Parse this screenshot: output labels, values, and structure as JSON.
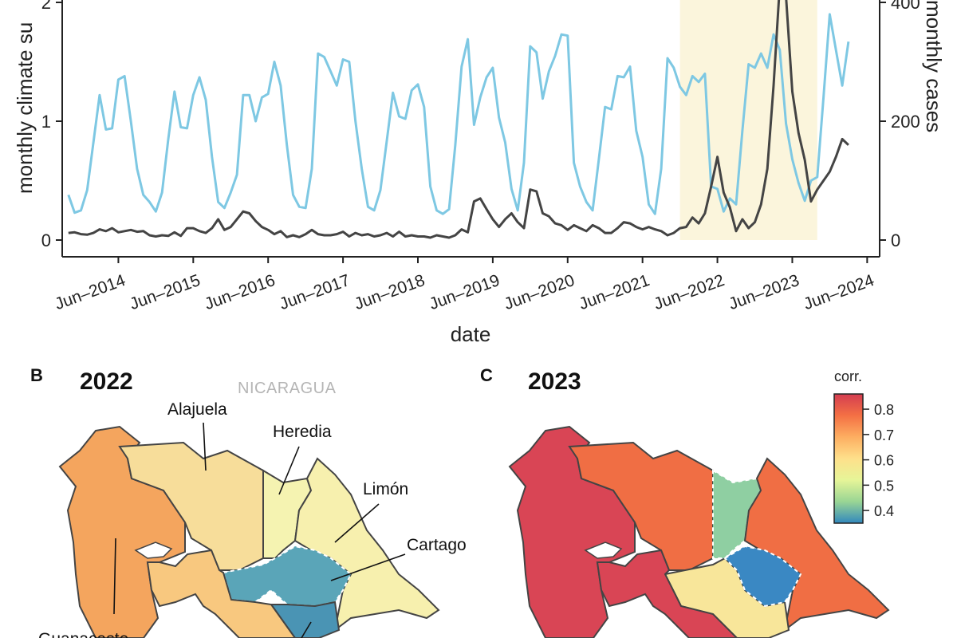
{
  "panel_a": {
    "chart_data": {
      "type": "line",
      "xlabel": "date",
      "ylabel_left": "monthly climate su",
      "ylabel_right": "monthly cases",
      "ylim_left": [
        0,
        2
      ],
      "ylim_right": [
        0,
        400
      ],
      "y_ticks_left": [
        "0",
        "1",
        "2"
      ],
      "y_ticks_right": [
        "0",
        "200",
        "400"
      ],
      "x_tick_labels": [
        "Jun–2014",
        "Jun–2015",
        "Jun–2016",
        "Jun–2017",
        "Jun–2018",
        "Jun–2019",
        "Jun–2020",
        "Jun–2021",
        "Jun–2022",
        "Jun–2023",
        "Jun–2024"
      ],
      "x_range": [
        "2013-09",
        "2024-08"
      ],
      "highlight_range": [
        "2021-12",
        "2023-10"
      ],
      "climate_color": "#7ec8e3",
      "cases_color": "#444444",
      "highlight_color": "#fbf5dc",
      "climate_series": {
        "axis": "left",
        "points": [
          [
            "2013-10",
            0.38
          ],
          [
            "2013-11",
            0.23
          ],
          [
            "2013-12",
            0.25
          ],
          [
            "2014-01",
            0.42
          ],
          [
            "2014-02",
            0.82
          ],
          [
            "2014-03",
            1.22
          ],
          [
            "2014-04",
            0.93
          ],
          [
            "2014-05",
            0.94
          ],
          [
            "2014-06",
            1.35
          ],
          [
            "2014-07",
            1.38
          ],
          [
            "2014-08",
            1.0
          ],
          [
            "2014-09",
            0.6
          ],
          [
            "2014-10",
            0.38
          ],
          [
            "2014-11",
            0.32
          ],
          [
            "2014-12",
            0.24
          ],
          [
            "2015-01",
            0.4
          ],
          [
            "2015-02",
            0.85
          ],
          [
            "2015-03",
            1.25
          ],
          [
            "2015-04",
            0.95
          ],
          [
            "2015-05",
            0.94
          ],
          [
            "2015-06",
            1.22
          ],
          [
            "2015-07",
            1.37
          ],
          [
            "2015-08",
            1.18
          ],
          [
            "2015-09",
            0.7
          ],
          [
            "2015-10",
            0.32
          ],
          [
            "2015-11",
            0.27
          ],
          [
            "2015-12",
            0.4
          ],
          [
            "2016-01",
            0.55
          ],
          [
            "2016-02",
            1.22
          ],
          [
            "2016-03",
            1.22
          ],
          [
            "2016-04",
            1.0
          ],
          [
            "2016-05",
            1.2
          ],
          [
            "2016-06",
            1.23
          ],
          [
            "2016-07",
            1.5
          ],
          [
            "2016-08",
            1.3
          ],
          [
            "2016-09",
            0.8
          ],
          [
            "2016-10",
            0.38
          ],
          [
            "2016-11",
            0.28
          ],
          [
            "2016-12",
            0.27
          ],
          [
            "2017-01",
            0.6
          ],
          [
            "2017-02",
            1.57
          ],
          [
            "2017-03",
            1.54
          ],
          [
            "2017-04",
            1.42
          ],
          [
            "2017-05",
            1.3
          ],
          [
            "2017-06",
            1.52
          ],
          [
            "2017-07",
            1.5
          ],
          [
            "2017-08",
            1.0
          ],
          [
            "2017-09",
            0.6
          ],
          [
            "2017-10",
            0.28
          ],
          [
            "2017-11",
            0.25
          ],
          [
            "2017-12",
            0.42
          ],
          [
            "2018-01",
            0.83
          ],
          [
            "2018-02",
            1.24
          ],
          [
            "2018-03",
            1.04
          ],
          [
            "2018-04",
            1.02
          ],
          [
            "2018-05",
            1.26
          ],
          [
            "2018-06",
            1.31
          ],
          [
            "2018-07",
            1.12
          ],
          [
            "2018-08",
            0.45
          ],
          [
            "2018-09",
            0.25
          ],
          [
            "2018-10",
            0.22
          ],
          [
            "2018-11",
            0.26
          ],
          [
            "2018-12",
            0.8
          ],
          [
            "2019-01",
            1.46
          ],
          [
            "2019-02",
            1.69
          ],
          [
            "2019-03",
            0.97
          ],
          [
            "2019-04",
            1.2
          ],
          [
            "2019-05",
            1.37
          ],
          [
            "2019-06",
            1.45
          ],
          [
            "2019-07",
            1.03
          ],
          [
            "2019-08",
            0.82
          ],
          [
            "2019-09",
            0.43
          ],
          [
            "2019-10",
            0.25
          ],
          [
            "2019-11",
            0.65
          ],
          [
            "2019-12",
            1.63
          ],
          [
            "2020-01",
            1.58
          ],
          [
            "2020-02",
            1.19
          ],
          [
            "2020-03",
            1.42
          ],
          [
            "2020-04",
            1.55
          ],
          [
            "2020-05",
            1.73
          ],
          [
            "2020-06",
            1.72
          ],
          [
            "2020-07",
            0.65
          ],
          [
            "2020-08",
            0.45
          ],
          [
            "2020-09",
            0.32
          ],
          [
            "2020-10",
            0.25
          ],
          [
            "2020-11",
            0.68
          ],
          [
            "2020-12",
            1.12
          ],
          [
            "2021-01",
            1.1
          ],
          [
            "2021-02",
            1.38
          ],
          [
            "2021-03",
            1.37
          ],
          [
            "2021-04",
            1.46
          ],
          [
            "2021-05",
            0.92
          ],
          [
            "2021-06",
            0.7
          ],
          [
            "2021-07",
            0.3
          ],
          [
            "2021-08",
            0.22
          ],
          [
            "2021-09",
            0.6
          ],
          [
            "2021-10",
            1.53
          ],
          [
            "2021-11",
            1.45
          ],
          [
            "2021-12",
            1.29
          ],
          [
            "2022-01",
            1.22
          ],
          [
            "2022-02",
            1.38
          ],
          [
            "2022-03",
            1.33
          ],
          [
            "2022-04",
            1.4
          ],
          [
            "2022-05",
            0.45
          ],
          [
            "2022-06",
            0.43
          ],
          [
            "2022-07",
            0.24
          ],
          [
            "2022-08",
            0.35
          ],
          [
            "2022-09",
            0.3
          ],
          [
            "2022-10",
            0.92
          ],
          [
            "2022-11",
            1.48
          ],
          [
            "2022-12",
            1.45
          ],
          [
            "2023-01",
            1.57
          ],
          [
            "2023-02",
            1.45
          ],
          [
            "2023-03",
            1.73
          ],
          [
            "2023-04",
            1.6
          ],
          [
            "2023-05",
            0.98
          ],
          [
            "2023-06",
            0.68
          ],
          [
            "2023-07",
            0.48
          ],
          [
            "2023-08",
            0.33
          ],
          [
            "2023-09",
            0.5
          ],
          [
            "2023-10",
            0.53
          ],
          [
            "2023-11",
            1.2
          ],
          [
            "2023-12",
            1.9
          ],
          [
            "2024-01",
            1.6
          ],
          [
            "2024-02",
            1.3
          ],
          [
            "2024-03",
            1.67
          ]
        ]
      },
      "cases_series": {
        "axis": "right",
        "points": [
          [
            "2013-10",
            12
          ],
          [
            "2013-11",
            13
          ],
          [
            "2013-12",
            10
          ],
          [
            "2014-01",
            9
          ],
          [
            "2014-02",
            12
          ],
          [
            "2014-03",
            18
          ],
          [
            "2014-04",
            15
          ],
          [
            "2014-05",
            20
          ],
          [
            "2014-06",
            13
          ],
          [
            "2014-07",
            15
          ],
          [
            "2014-08",
            17
          ],
          [
            "2014-09",
            14
          ],
          [
            "2014-10",
            15
          ],
          [
            "2014-11",
            8
          ],
          [
            "2014-12",
            6
          ],
          [
            "2015-01",
            8
          ],
          [
            "2015-02",
            7
          ],
          [
            "2015-03",
            13
          ],
          [
            "2015-04",
            7
          ],
          [
            "2015-05",
            20
          ],
          [
            "2015-06",
            20
          ],
          [
            "2015-07",
            15
          ],
          [
            "2015-08",
            12
          ],
          [
            "2015-09",
            20
          ],
          [
            "2015-10",
            35
          ],
          [
            "2015-11",
            17
          ],
          [
            "2015-12",
            22
          ],
          [
            "2016-01",
            35
          ],
          [
            "2016-02",
            48
          ],
          [
            "2016-03",
            45
          ],
          [
            "2016-04",
            32
          ],
          [
            "2016-05",
            22
          ],
          [
            "2016-06",
            17
          ],
          [
            "2016-07",
            10
          ],
          [
            "2016-08",
            15
          ],
          [
            "2016-09",
            5
          ],
          [
            "2016-10",
            8
          ],
          [
            "2016-11",
            5
          ],
          [
            "2016-12",
            10
          ],
          [
            "2017-01",
            17
          ],
          [
            "2017-02",
            10
          ],
          [
            "2017-03",
            8
          ],
          [
            "2017-04",
            8
          ],
          [
            "2017-05",
            10
          ],
          [
            "2017-06",
            14
          ],
          [
            "2017-07",
            6
          ],
          [
            "2017-08",
            12
          ],
          [
            "2017-09",
            8
          ],
          [
            "2017-10",
            10
          ],
          [
            "2017-11",
            6
          ],
          [
            "2017-12",
            8
          ],
          [
            "2018-01",
            12
          ],
          [
            "2018-02",
            6
          ],
          [
            "2018-03",
            14
          ],
          [
            "2018-04",
            6
          ],
          [
            "2018-05",
            8
          ],
          [
            "2018-06",
            6
          ],
          [
            "2018-07",
            6
          ],
          [
            "2018-08",
            4
          ],
          [
            "2018-09",
            8
          ],
          [
            "2018-10",
            6
          ],
          [
            "2018-11",
            4
          ],
          [
            "2018-12",
            8
          ],
          [
            "2019-01",
            18
          ],
          [
            "2019-02",
            13
          ],
          [
            "2019-03",
            65
          ],
          [
            "2019-04",
            70
          ],
          [
            "2019-05",
            52
          ],
          [
            "2019-06",
            35
          ],
          [
            "2019-07",
            22
          ],
          [
            "2019-08",
            35
          ],
          [
            "2019-09",
            45
          ],
          [
            "2019-10",
            30
          ],
          [
            "2019-11",
            20
          ],
          [
            "2019-12",
            85
          ],
          [
            "2020-01",
            82
          ],
          [
            "2020-02",
            45
          ],
          [
            "2020-03",
            40
          ],
          [
            "2020-04",
            28
          ],
          [
            "2020-05",
            25
          ],
          [
            "2020-06",
            17
          ],
          [
            "2020-07",
            25
          ],
          [
            "2020-08",
            20
          ],
          [
            "2020-09",
            15
          ],
          [
            "2020-10",
            25
          ],
          [
            "2020-11",
            20
          ],
          [
            "2020-12",
            12
          ],
          [
            "2021-01",
            12
          ],
          [
            "2021-02",
            20
          ],
          [
            "2021-03",
            30
          ],
          [
            "2021-04",
            28
          ],
          [
            "2021-05",
            22
          ],
          [
            "2021-06",
            18
          ],
          [
            "2021-07",
            22
          ],
          [
            "2021-08",
            18
          ],
          [
            "2021-09",
            15
          ],
          [
            "2021-10",
            8
          ],
          [
            "2021-11",
            12
          ],
          [
            "2021-12",
            20
          ],
          [
            "2022-01",
            22
          ],
          [
            "2022-02",
            38
          ],
          [
            "2022-03",
            28
          ],
          [
            "2022-04",
            45
          ],
          [
            "2022-05",
            90
          ],
          [
            "2022-06",
            140
          ],
          [
            "2022-07",
            80
          ],
          [
            "2022-08",
            55
          ],
          [
            "2022-09",
            15
          ],
          [
            "2022-10",
            35
          ],
          [
            "2022-11",
            20
          ],
          [
            "2022-12",
            30
          ],
          [
            "2023-01",
            60
          ],
          [
            "2023-02",
            120
          ],
          [
            "2023-03",
            260
          ],
          [
            "2023-04",
            430
          ],
          [
            "2023-05",
            410
          ],
          [
            "2023-06",
            250
          ],
          [
            "2023-07",
            180
          ],
          [
            "2023-08",
            135
          ],
          [
            "2023-09",
            65
          ],
          [
            "2023-10",
            85
          ],
          [
            "2023-11",
            100
          ],
          [
            "2023-12",
            115
          ],
          [
            "2024-01",
            140
          ],
          [
            "2024-02",
            170
          ],
          [
            "2024-03",
            160
          ]
        ]
      }
    }
  },
  "panel_b": {
    "letter": "B",
    "year": "2022",
    "country_label": "NICARAGUA",
    "regions": {
      "guanacaste": {
        "label": "Guanacaste",
        "color": "#f4a55e"
      },
      "alajuela": {
        "label": "Alajuela",
        "color": "#f7dd9a"
      },
      "heredia": {
        "label": "Heredia",
        "color": "#f5f3b1"
      },
      "limon": {
        "label": "Limón",
        "color": "#f7f0ae"
      },
      "cartago": {
        "label": "Cartago",
        "color": "#5aa5b8"
      },
      "san_jose": {
        "color": "#4a94b4"
      },
      "puntarenas": {
        "color": "#f8c87f"
      }
    }
  },
  "panel_c": {
    "letter": "C",
    "year": "2023",
    "regions": {
      "guanacaste": {
        "color": "#d94555"
      },
      "alajuela": {
        "color": "#f06e44"
      },
      "heredia": {
        "color": "#8fcfa2"
      },
      "limon": {
        "color": "#f06e44"
      },
      "cartago": {
        "color": "#f8e69a"
      },
      "san_jose": {
        "color": "#3a88c3"
      },
      "puntarenas": {
        "color": "#d94555"
      }
    }
  },
  "legend": {
    "title": "corr.",
    "ticks": [
      "0.8",
      "0.7",
      "0.6",
      "0.5",
      "0.4"
    ],
    "tick_values": [
      0.8,
      0.7,
      0.6,
      0.5,
      0.4
    ],
    "range": [
      0.35,
      0.86
    ],
    "gradient": [
      "#d43d51",
      "#f47044",
      "#fdae61",
      "#fee08b",
      "#e6f598",
      "#99d594",
      "#3288bd"
    ]
  }
}
